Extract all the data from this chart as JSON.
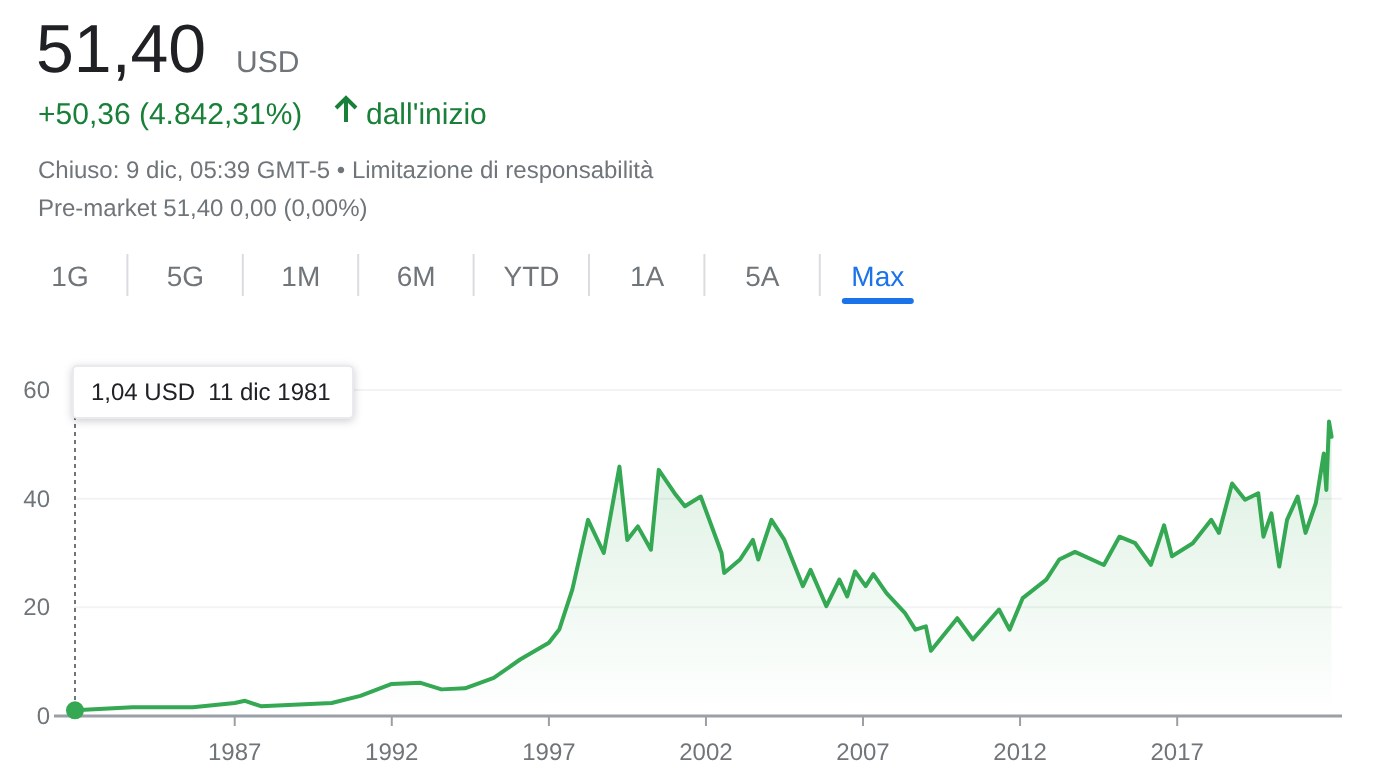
{
  "chart_data": {
    "type": "area",
    "title": "51,40",
    "subtitle": "USD",
    "annotations": [
      "+50,36 (4.842,31%)",
      "dall'inizio",
      "Chiuso: 9 dic, 05:39 GMT-5 • Limitazione di responsabilità",
      "Pre-market 51,40 0,00 (0,00%)",
      "1G",
      "5G",
      "1M",
      "6M",
      "YTD",
      "1A",
      "5A",
      "Max",
      {
        "text": "1,04 USD  11 dic 1981",
        "x": "1981-12",
        "y": 1.04
      }
    ],
    "x": [
      "1981-12",
      "1983-10",
      "1985-09",
      "1987-01",
      "1987-05",
      "1987-11",
      "1990-02",
      "1991-01",
      "1992-01",
      "1992-12",
      "1993-08",
      "1994-05",
      "1995-04",
      "1996-02",
      "1997-01",
      "1997-05",
      "1997-10",
      "1998-04",
      "1998-10",
      "1999-04",
      "1999-07",
      "1999-11",
      "2000-04",
      "2000-07",
      "2001-01",
      "2001-05",
      "2001-11",
      "2002-07",
      "2002-08",
      "2003-02",
      "2003-07",
      "2003-09",
      "2004-02",
      "2004-07",
      "2005-02",
      "2005-05",
      "2005-11",
      "2006-04",
      "2006-07",
      "2006-10",
      "2007-02",
      "2007-05",
      "2007-10",
      "2008-05",
      "2008-09",
      "2009-01",
      "2009-03",
      "2010-01",
      "2010-07",
      "2011-05",
      "2011-09",
      "2012-02",
      "2012-11",
      "2013-04",
      "2013-10",
      "2014-09",
      "2015-03",
      "2015-09",
      "2016-03",
      "2016-08",
      "2016-11",
      "2017-07",
      "2018-02",
      "2018-05",
      "2018-10",
      "2019-03",
      "2019-08",
      "2019-10",
      "2020-01",
      "2020-04",
      "2020-07",
      "2020-11",
      "2021-02",
      "2021-06",
      "2021-09",
      "2021-10",
      "2021-11",
      "2021-12"
    ],
    "series": [
      {
        "color": "#34a853",
        "values": [
          1.04,
          1.6,
          1.6,
          2.4,
          2.8,
          1.8,
          2.4,
          3.7,
          5.9,
          6.1,
          4.9,
          5.1,
          7.0,
          10.4,
          13.5,
          15.9,
          23.3,
          36.1,
          30.0,
          45.9,
          32.4,
          34.9,
          30.6,
          45.3,
          41.0,
          38.6,
          40.4,
          30.0,
          26.3,
          28.8,
          32.4,
          28.8,
          36.1,
          32.4,
          23.9,
          26.9,
          20.2,
          25.1,
          22.0,
          26.6,
          23.9,
          26.1,
          22.6,
          19.0,
          15.9,
          16.5,
          12.0,
          18.0,
          14.1,
          19.6,
          15.9,
          21.7,
          25.1,
          28.8,
          30.2,
          27.8,
          33.0,
          31.8,
          27.8,
          35.1,
          29.4,
          31.8,
          36.1,
          33.7,
          42.8,
          39.8,
          41.0,
          33.0,
          37.3,
          27.5,
          36.1,
          40.4,
          33.7,
          39.2,
          48.3,
          41.6,
          54.2,
          51.4
        ]
      }
    ],
    "xlim": [
      "1981-04",
      "2022-04"
    ],
    "xticks": [
      "1987",
      "1992",
      "1997",
      "2002",
      "2007",
      "2012",
      "2017"
    ],
    "ylim": [
      0,
      60
    ],
    "yticks": [
      0,
      20,
      40,
      60
    ],
    "grid": "y",
    "marker": "none",
    "line_style": "solid"
  }
}
